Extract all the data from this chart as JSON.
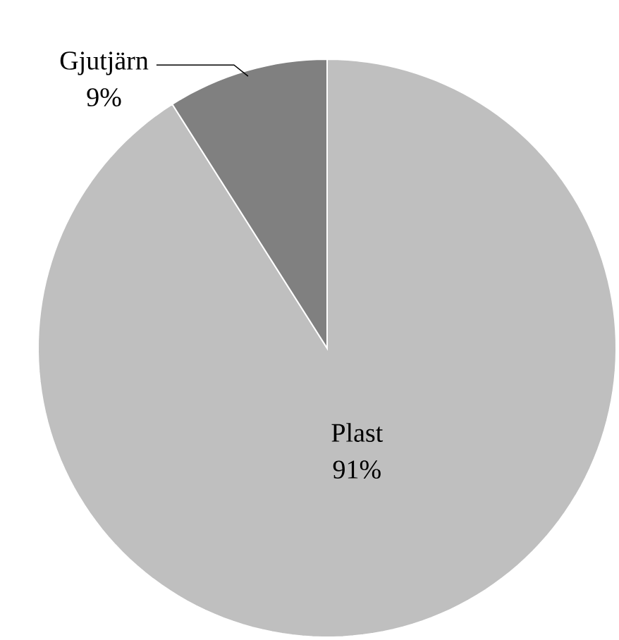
{
  "chart_data": {
    "type": "pie",
    "categories": [
      "Plast",
      "Gjutjärn"
    ],
    "values": [
      91,
      9
    ],
    "value_labels": [
      "91%",
      "9%"
    ],
    "colors": [
      "#bfbfbf",
      "#808080"
    ]
  }
}
